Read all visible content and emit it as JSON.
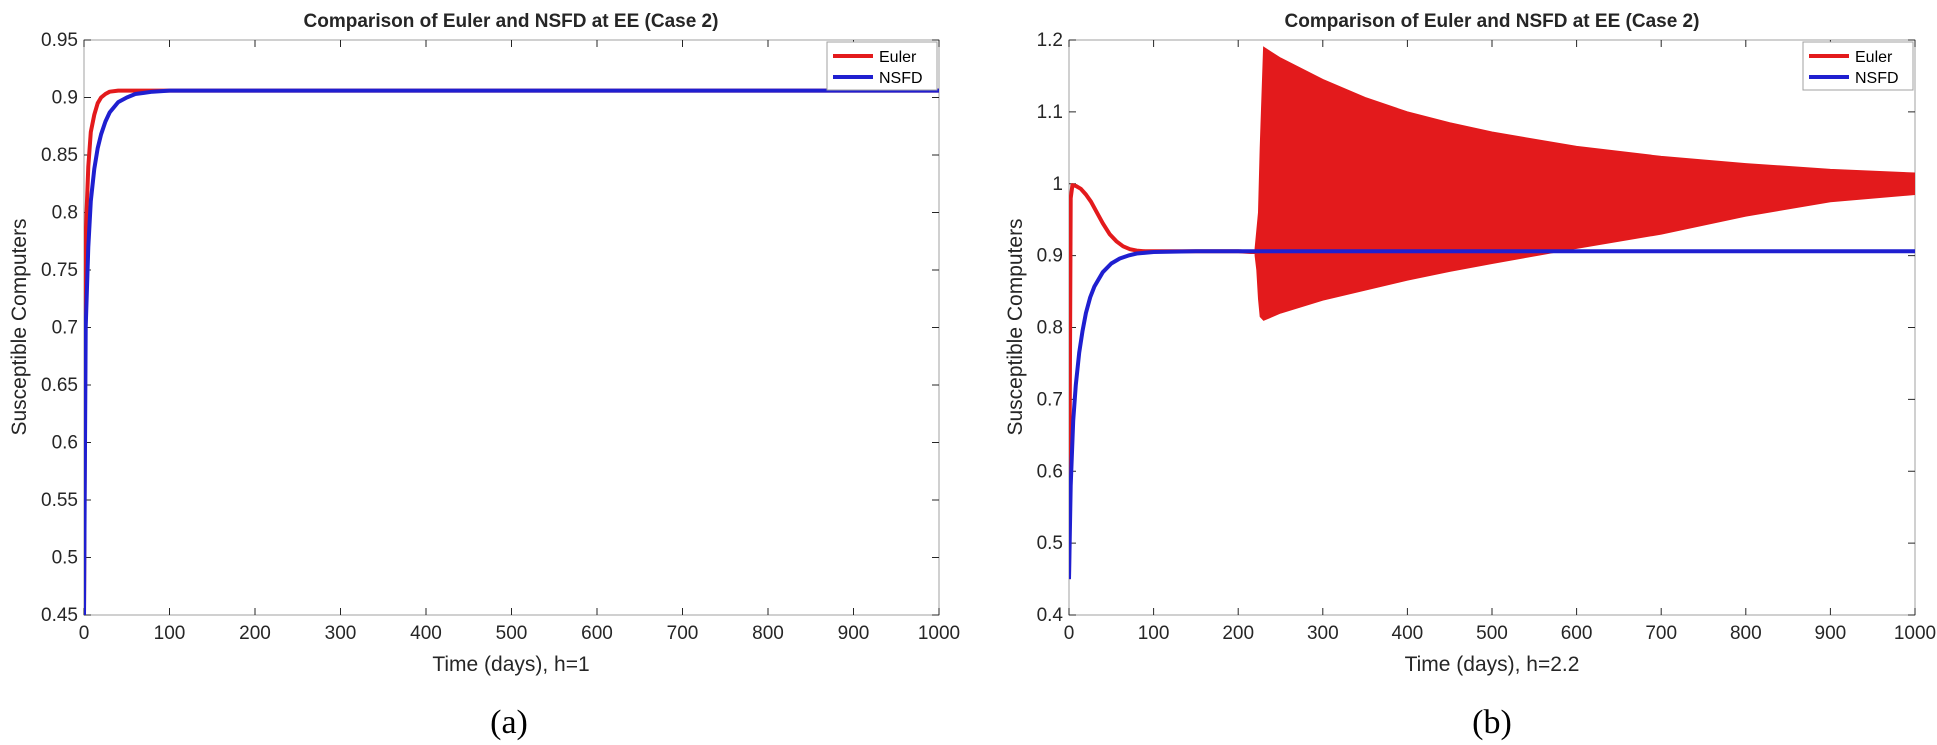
{
  "colors": {
    "euler": "#e31a1c",
    "nsfd": "#1f1fd0",
    "axis": "#262626",
    "frame": "#a0a0a0"
  },
  "chart_data": [
    {
      "type": "line",
      "panel": "a",
      "caption": "(a)",
      "title": "Comparison of Euler and NSFD at EE (Case 2)",
      "xlabel": "Time (days), h=1",
      "ylabel": "Susceptible Computers",
      "xlim": [
        0,
        1000
      ],
      "ylim": [
        0.45,
        0.95
      ],
      "xticks": [
        0,
        100,
        200,
        300,
        400,
        500,
        600,
        700,
        800,
        900,
        1000
      ],
      "xtick_labels": [
        "0",
        "100",
        "200",
        "300",
        "400",
        "500",
        "600",
        "700",
        "800",
        "900",
        "1000"
      ],
      "yticks": [
        0.45,
        0.5,
        0.55,
        0.6,
        0.65,
        0.7,
        0.75,
        0.8,
        0.85,
        0.9,
        0.95
      ],
      "ytick_labels": [
        "0.45",
        "0.5",
        "0.55",
        "0.6",
        "0.65",
        "0.7",
        "0.75",
        "0.8",
        "0.85",
        "0.9",
        "0.95"
      ],
      "legend": "top-right",
      "series": [
        {
          "name": "Euler",
          "color": "#e31a1c",
          "x": [
            0,
            2,
            5,
            8,
            12,
            16,
            20,
            25,
            30,
            40,
            50,
            60,
            80,
            100,
            1000
          ],
          "y": [
            0.45,
            0.78,
            0.84,
            0.87,
            0.885,
            0.895,
            0.9,
            0.903,
            0.905,
            0.906,
            0.906,
            0.906,
            0.906,
            0.906,
            0.906
          ]
        },
        {
          "name": "NSFD",
          "color": "#1f1fd0",
          "x": [
            0,
            2,
            5,
            8,
            12,
            16,
            20,
            25,
            30,
            40,
            50,
            60,
            70,
            80,
            100,
            150,
            1000
          ],
          "y": [
            0.45,
            0.7,
            0.77,
            0.81,
            0.838,
            0.856,
            0.868,
            0.879,
            0.887,
            0.896,
            0.9,
            0.903,
            0.904,
            0.905,
            0.906,
            0.906,
            0.906
          ]
        }
      ]
    },
    {
      "type": "line",
      "panel": "b",
      "caption": "(b)",
      "title": "Comparison of Euler and NSFD at EE (Case 2)",
      "xlabel": "Time (days), h=2.2",
      "ylabel": "Susceptible Computers",
      "xlim": [
        0,
        1000
      ],
      "ylim": [
        0.4,
        1.2
      ],
      "xticks": [
        0,
        100,
        200,
        300,
        400,
        500,
        600,
        700,
        800,
        900,
        1000
      ],
      "xtick_labels": [
        "0",
        "100",
        "200",
        "300",
        "400",
        "500",
        "600",
        "700",
        "800",
        "900",
        "1000"
      ],
      "yticks": [
        0.4,
        0.5,
        0.6,
        0.7,
        0.8,
        0.9,
        1,
        1.1,
        1.2
      ],
      "ytick_labels": [
        "0.4",
        "0.5",
        "0.6",
        "0.7",
        "0.8",
        "0.9",
        "1",
        "1.1",
        "1.2"
      ],
      "legend": "top-right",
      "series": [
        {
          "name": "Euler",
          "color": "#e31a1c",
          "x": [
            0,
            2,
            4,
            8,
            14,
            20,
            26,
            32,
            40,
            48,
            56,
            64,
            72,
            80,
            90,
            100,
            120,
            150,
            200,
            215,
            220
          ],
          "y": [
            0.45,
            0.98,
            0.998,
            0.997,
            0.993,
            0.985,
            0.975,
            0.962,
            0.945,
            0.93,
            0.92,
            0.913,
            0.909,
            0.907,
            0.906,
            0.906,
            0.906,
            0.906,
            0.906,
            0.905,
            0.905
          ],
          "oscillation_envelope": {
            "x": [
              220,
              222,
              224,
              226,
              230,
              250,
              300,
              350,
              400,
              450,
              500,
              600,
              700,
              800,
              900,
              1000
            ],
            "upper": [
              0.91,
              0.935,
              0.96,
              1.05,
              1.19,
              1.175,
              1.145,
              1.12,
              1.1,
              1.085,
              1.072,
              1.052,
              1.038,
              1.028,
              1.02,
              1.015
            ],
            "lower": [
              0.9,
              0.88,
              0.84,
              0.815,
              0.81,
              0.82,
              0.838,
              0.852,
              0.866,
              0.878,
              0.889,
              0.91,
              0.93,
              0.955,
              0.975,
              0.985
            ]
          }
        },
        {
          "name": "NSFD",
          "color": "#1f1fd0",
          "x": [
            0,
            2,
            5,
            8,
            12,
            16,
            20,
            25,
            30,
            40,
            50,
            60,
            70,
            80,
            100,
            150,
            1000
          ],
          "y": [
            0.45,
            0.58,
            0.67,
            0.72,
            0.765,
            0.795,
            0.82,
            0.842,
            0.857,
            0.877,
            0.889,
            0.896,
            0.9,
            0.903,
            0.905,
            0.906,
            0.906
          ]
        }
      ]
    }
  ]
}
